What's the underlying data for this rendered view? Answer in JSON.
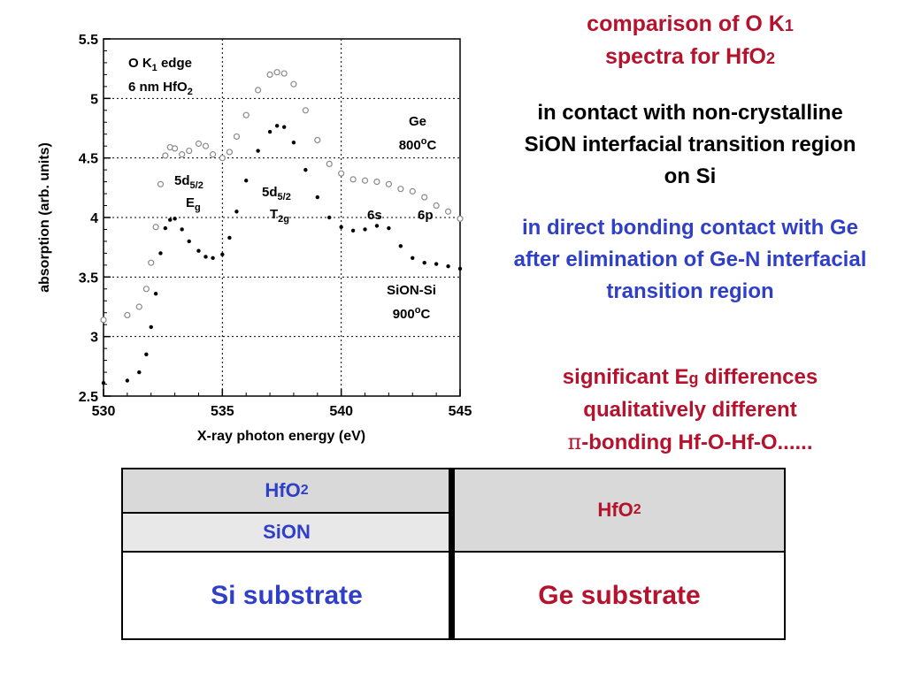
{
  "chart_data": {
    "type": "scatter",
    "xlabel": "X-ray photon energy (eV)",
    "ylabel": "absorption  (arb. units)",
    "xlim": [
      530,
      545
    ],
    "ylim": [
      2.5,
      5.5
    ],
    "xticks": [
      "530",
      "535",
      "540",
      "545"
    ],
    "yticks": [
      "2.5",
      "3",
      "3.5",
      "4",
      "4.5",
      "5",
      "5.5"
    ],
    "grid": true,
    "series": [
      {
        "name": "Ge 800oC",
        "color": "#8a8a8a",
        "marker": "open-circle",
        "x": [
          530,
          531,
          531.5,
          531.8,
          532.0,
          532.2,
          532.4,
          532.6,
          532.8,
          533.0,
          533.3,
          533.6,
          534.0,
          534.3,
          534.6,
          535.0,
          535.3,
          535.6,
          536.0,
          536.5,
          537.0,
          537.3,
          537.6,
          538.0,
          538.5,
          539.0,
          539.5,
          540.0,
          540.5,
          541.0,
          541.5,
          542.0,
          542.5,
          543.0,
          543.5,
          544.0,
          544.5,
          545.0
        ],
        "y": [
          3.14,
          3.18,
          3.25,
          3.4,
          3.62,
          3.92,
          4.28,
          4.52,
          4.59,
          4.58,
          4.53,
          4.56,
          4.62,
          4.6,
          4.53,
          4.5,
          4.55,
          4.68,
          4.86,
          5.07,
          5.2,
          5.22,
          5.21,
          5.12,
          4.9,
          4.65,
          4.45,
          4.37,
          4.32,
          4.31,
          4.3,
          4.28,
          4.24,
          4.22,
          4.17,
          4.1,
          4.05,
          3.99
        ]
      },
      {
        "name": "SiON-Si 900oC",
        "color": "#000000",
        "marker": "dot",
        "x": [
          530,
          531,
          531.5,
          531.8,
          532.0,
          532.2,
          532.4,
          532.6,
          532.8,
          533.0,
          533.3,
          533.6,
          534.0,
          534.3,
          534.6,
          535.0,
          535.3,
          535.6,
          536.0,
          536.5,
          537.0,
          537.3,
          537.6,
          538.0,
          538.5,
          539.0,
          539.5,
          540.0,
          540.5,
          541.0,
          541.5,
          542.0,
          542.5,
          543.0,
          543.5,
          544.0,
          544.5,
          545.0
        ],
        "y": [
          2.61,
          2.63,
          2.7,
          2.85,
          3.08,
          3.36,
          3.7,
          3.91,
          3.98,
          3.99,
          3.9,
          3.8,
          3.72,
          3.67,
          3.66,
          3.69,
          3.83,
          4.05,
          4.31,
          4.56,
          4.72,
          4.77,
          4.76,
          4.63,
          4.4,
          4.17,
          4.0,
          3.92,
          3.89,
          3.9,
          3.93,
          3.91,
          3.76,
          3.66,
          3.62,
          3.61,
          3.59,
          3.57
        ]
      }
    ],
    "annotations": {
      "edge_line1": "O K",
      "edge_line1_sub": "1",
      "edge_line1_rest": " edge",
      "edge_line2": "6 nm HfO",
      "edge_line2_sub": "2",
      "ge_label": "Ge",
      "ge_temp": "800",
      "ge_temp_sup": "o",
      "ge_temp_unit": "C",
      "eg_label": "5d",
      "eg_label_sub": "5/2",
      "eg_sym": "E",
      "eg_sym_sub": "g",
      "t2g_label": "5d",
      "t2g_label_sub": "5/2",
      "t2g_sym": "T",
      "t2g_sym_sub": "2g",
      "s6": "6s",
      "p6": "6p",
      "sion_label": "SiON-Si",
      "sion_temp": "900",
      "sion_temp_sup": "o",
      "sion_temp_unit": "C"
    }
  },
  "side_text": {
    "title_line1": "comparison of O K",
    "title_line1_sub": "1",
    "title_line2": "spectra for HfO",
    "title_line2_sub": "2",
    "para1": "in contact with non-crystalline SiON interfacial transition region on Si",
    "para2": "in direct bonding contact with Ge after elimination of Ge-N interfacial transition region",
    "para3_a": "significant E",
    "para3_sub": "g",
    "para3_b": " differences",
    "para3_line2": "qualitatively different",
    "para3_pi": "π",
    "para3_line3": "-bonding Hf-O-Hf-O......"
  },
  "stacks": {
    "left": {
      "top": "HfO",
      "top_sub": "2",
      "mid": "SiON",
      "bottom": "Si substrate"
    },
    "right": {
      "top": "HfO",
      "top_sub": "2",
      "bottom": "Ge substrate"
    }
  },
  "colors": {
    "red": "#b5122d",
    "blue": "#2f3fc8",
    "gray_fill": "#d9d9d9",
    "light_fill": "#e8e8e8"
  }
}
